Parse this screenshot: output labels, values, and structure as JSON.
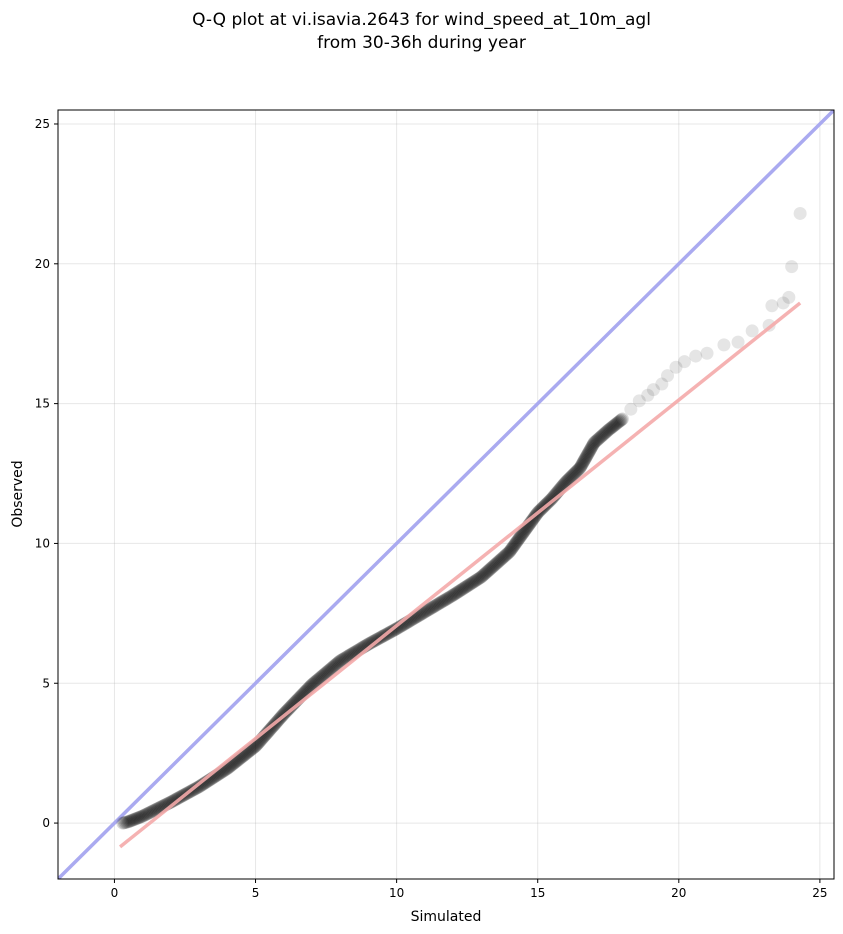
{
  "chart_data": {
    "type": "scatter",
    "title_line1": "Q-Q plot at vi.isavia.2643 for wind_speed_at_10m_agl",
    "title_line2": "from 30-36h during year",
    "xlabel": "Simulated",
    "ylabel": "Observed",
    "xlim": [
      -2,
      25.5
    ],
    "ylim": [
      -2,
      25.5
    ],
    "xticks": [
      0,
      5,
      10,
      15,
      20,
      25
    ],
    "yticks": [
      0,
      5,
      10,
      15,
      20,
      25
    ],
    "grid": true,
    "point_color": "#000000",
    "identity_line_color": "#aaaaf0",
    "fit_line_color": "#f4aaaa",
    "fit_line": {
      "x": [
        0.2,
        24.3
      ],
      "y": [
        -0.85,
        18.6
      ]
    },
    "quantile_curve": {
      "x": [
        0.3,
        0.5,
        1.0,
        2.0,
        3.0,
        4.0,
        5.0,
        6.0,
        7.0,
        8.0,
        9.0,
        10.0,
        11.0,
        12.0,
        13.0,
        14.0,
        14.5,
        15.0,
        15.5,
        16.0,
        16.5,
        17.0,
        17.5,
        18.0
      ],
      "y": [
        0.0,
        0.05,
        0.25,
        0.75,
        1.3,
        1.95,
        2.75,
        3.9,
        4.95,
        5.8,
        6.4,
        6.95,
        7.55,
        8.15,
        8.8,
        9.7,
        10.4,
        11.1,
        11.6,
        12.2,
        12.7,
        13.6,
        14.05,
        14.45
      ]
    },
    "tail_points": [
      {
        "x": 18.3,
        "y": 14.8
      },
      {
        "x": 18.6,
        "y": 15.1
      },
      {
        "x": 18.9,
        "y": 15.3
      },
      {
        "x": 19.1,
        "y": 15.5
      },
      {
        "x": 19.4,
        "y": 15.7
      },
      {
        "x": 19.6,
        "y": 16.0
      },
      {
        "x": 19.9,
        "y": 16.3
      },
      {
        "x": 20.2,
        "y": 16.5
      },
      {
        "x": 20.6,
        "y": 16.7
      },
      {
        "x": 21.0,
        "y": 16.8
      },
      {
        "x": 21.6,
        "y": 17.1
      },
      {
        "x": 22.1,
        "y": 17.2
      },
      {
        "x": 22.6,
        "y": 17.6
      },
      {
        "x": 23.2,
        "y": 17.8
      },
      {
        "x": 23.3,
        "y": 18.5
      },
      {
        "x": 23.7,
        "y": 18.6
      },
      {
        "x": 23.9,
        "y": 18.8
      },
      {
        "x": 24.0,
        "y": 19.9
      },
      {
        "x": 24.3,
        "y": 21.8
      }
    ]
  }
}
